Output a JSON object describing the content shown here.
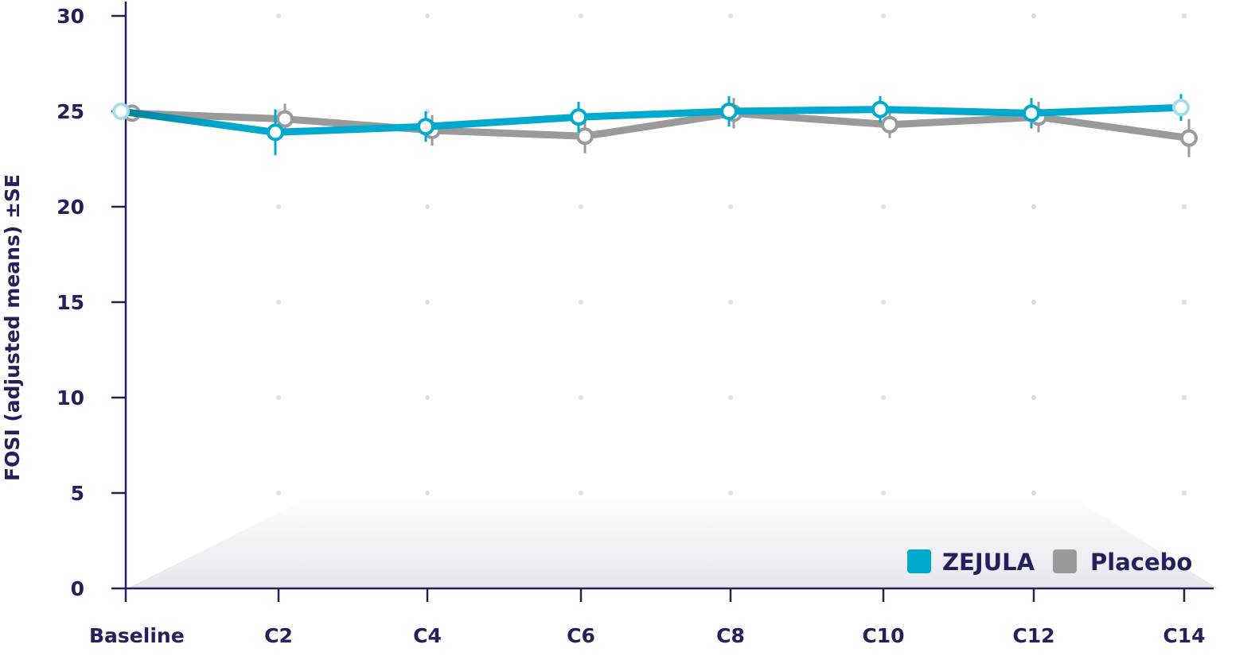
{
  "chart_data": {
    "type": "line",
    "title": "",
    "xlabel": "",
    "ylabel": "FOSI (adjusted means) ±SE",
    "categories": [
      "Baseline",
      "C2",
      "C4",
      "C6",
      "C8",
      "C10",
      "C12",
      "C14"
    ],
    "ylim": [
      0,
      30
    ],
    "yticks": [
      "0",
      "5",
      "10",
      "15",
      "20",
      "25",
      "30"
    ],
    "grid": "dotted",
    "legend_position": "bottom-right",
    "series": [
      {
        "name": "Placebo",
        "color": "#9a9a9a",
        "values": [
          24.9,
          24.6,
          24.0,
          23.7,
          24.9,
          24.3,
          24.7,
          23.6
        ],
        "se": [
          0,
          0.8,
          0.8,
          0.9,
          0.8,
          0.7,
          0.8,
          1.0
        ]
      },
      {
        "name": "ZEJULA",
        "color": "#00a9ce",
        "values": [
          25.0,
          23.9,
          24.2,
          24.7,
          25.0,
          25.1,
          24.9,
          25.2
        ],
        "se": [
          0,
          1.2,
          0.8,
          0.8,
          0.8,
          0.7,
          0.8,
          0.7
        ]
      }
    ]
  },
  "legend": {
    "items": [
      {
        "label": "ZEJULA",
        "color": "#00a9ce"
      },
      {
        "label": "Placebo",
        "color": "#9a9a9a"
      }
    ]
  },
  "style": {
    "axis_color": "#22215b",
    "grid_dot_color": "#dcdce3",
    "marker_fill": "#ffffff"
  }
}
